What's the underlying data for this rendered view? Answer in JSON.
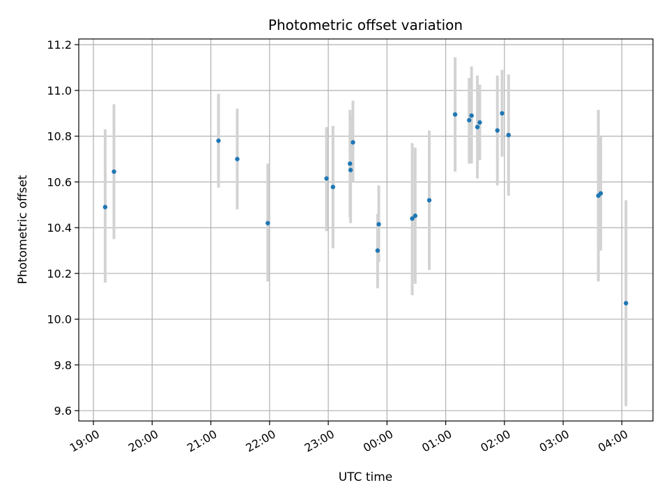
{
  "chart_data": {
    "type": "scatter",
    "title": "Photometric offset variation",
    "xlabel": "UTC time",
    "ylabel": "Photometric offset",
    "x_ticks": [
      "19:00",
      "20:00",
      "21:00",
      "22:00",
      "23:00",
      "00:00",
      "01:00",
      "02:00",
      "03:00",
      "04:00"
    ],
    "y_ticks": [
      "9.6",
      "9.8",
      "10.0",
      "10.2",
      "10.4",
      "10.6",
      "10.8",
      "11.0",
      "11.2"
    ],
    "xlim": [
      -0.25,
      9.53
    ],
    "ylim": [
      9.555,
      11.225
    ],
    "grid": true,
    "colors": {
      "point": "#1f77b4",
      "errorbar": "#d3d3d3",
      "grid": "#b0b0b0"
    },
    "points": [
      {
        "x": 0.2,
        "y": 10.49,
        "lo": 10.16,
        "hi": 10.83
      },
      {
        "x": 0.35,
        "y": 10.645,
        "lo": 10.35,
        "hi": 10.94
      },
      {
        "x": 2.13,
        "y": 10.78,
        "lo": 10.575,
        "hi": 10.985
      },
      {
        "x": 2.45,
        "y": 10.7,
        "lo": 10.48,
        "hi": 10.92
      },
      {
        "x": 2.97,
        "y": 10.42,
        "lo": 10.165,
        "hi": 10.68
      },
      {
        "x": 3.97,
        "y": 10.615,
        "lo": 10.385,
        "hi": 10.84
      },
      {
        "x": 4.08,
        "y": 10.578,
        "lo": 10.31,
        "hi": 10.845
      },
      {
        "x": 4.37,
        "y": 10.68,
        "lo": 10.445,
        "hi": 10.915
      },
      {
        "x": 4.38,
        "y": 10.652,
        "lo": 10.42,
        "hi": 10.89
      },
      {
        "x": 4.42,
        "y": 10.773,
        "lo": 10.6,
        "hi": 10.955
      },
      {
        "x": 4.84,
        "y": 10.3,
        "lo": 10.135,
        "hi": 10.46
      },
      {
        "x": 4.86,
        "y": 10.415,
        "lo": 10.25,
        "hi": 10.585
      },
      {
        "x": 5.43,
        "y": 10.44,
        "lo": 10.105,
        "hi": 10.77
      },
      {
        "x": 5.48,
        "y": 10.452,
        "lo": 10.155,
        "hi": 10.75
      },
      {
        "x": 5.72,
        "y": 10.52,
        "lo": 10.215,
        "hi": 10.825
      },
      {
        "x": 6.16,
        "y": 10.895,
        "lo": 10.645,
        "hi": 11.145
      },
      {
        "x": 6.4,
        "y": 10.87,
        "lo": 10.68,
        "hi": 11.055
      },
      {
        "x": 6.44,
        "y": 10.89,
        "lo": 10.68,
        "hi": 11.105
      },
      {
        "x": 6.54,
        "y": 10.84,
        "lo": 10.615,
        "hi": 11.065
      },
      {
        "x": 6.58,
        "y": 10.86,
        "lo": 10.695,
        "hi": 11.025
      },
      {
        "x": 6.88,
        "y": 10.825,
        "lo": 10.585,
        "hi": 11.065
      },
      {
        "x": 6.96,
        "y": 10.9,
        "lo": 10.71,
        "hi": 11.09
      },
      {
        "x": 7.07,
        "y": 10.805,
        "lo": 10.54,
        "hi": 11.07
      },
      {
        "x": 8.6,
        "y": 10.54,
        "lo": 10.165,
        "hi": 10.915
      },
      {
        "x": 8.64,
        "y": 10.55,
        "lo": 10.3,
        "hi": 10.8
      },
      {
        "x": 9.07,
        "y": 10.07,
        "lo": 9.62,
        "hi": 10.52
      }
    ]
  }
}
